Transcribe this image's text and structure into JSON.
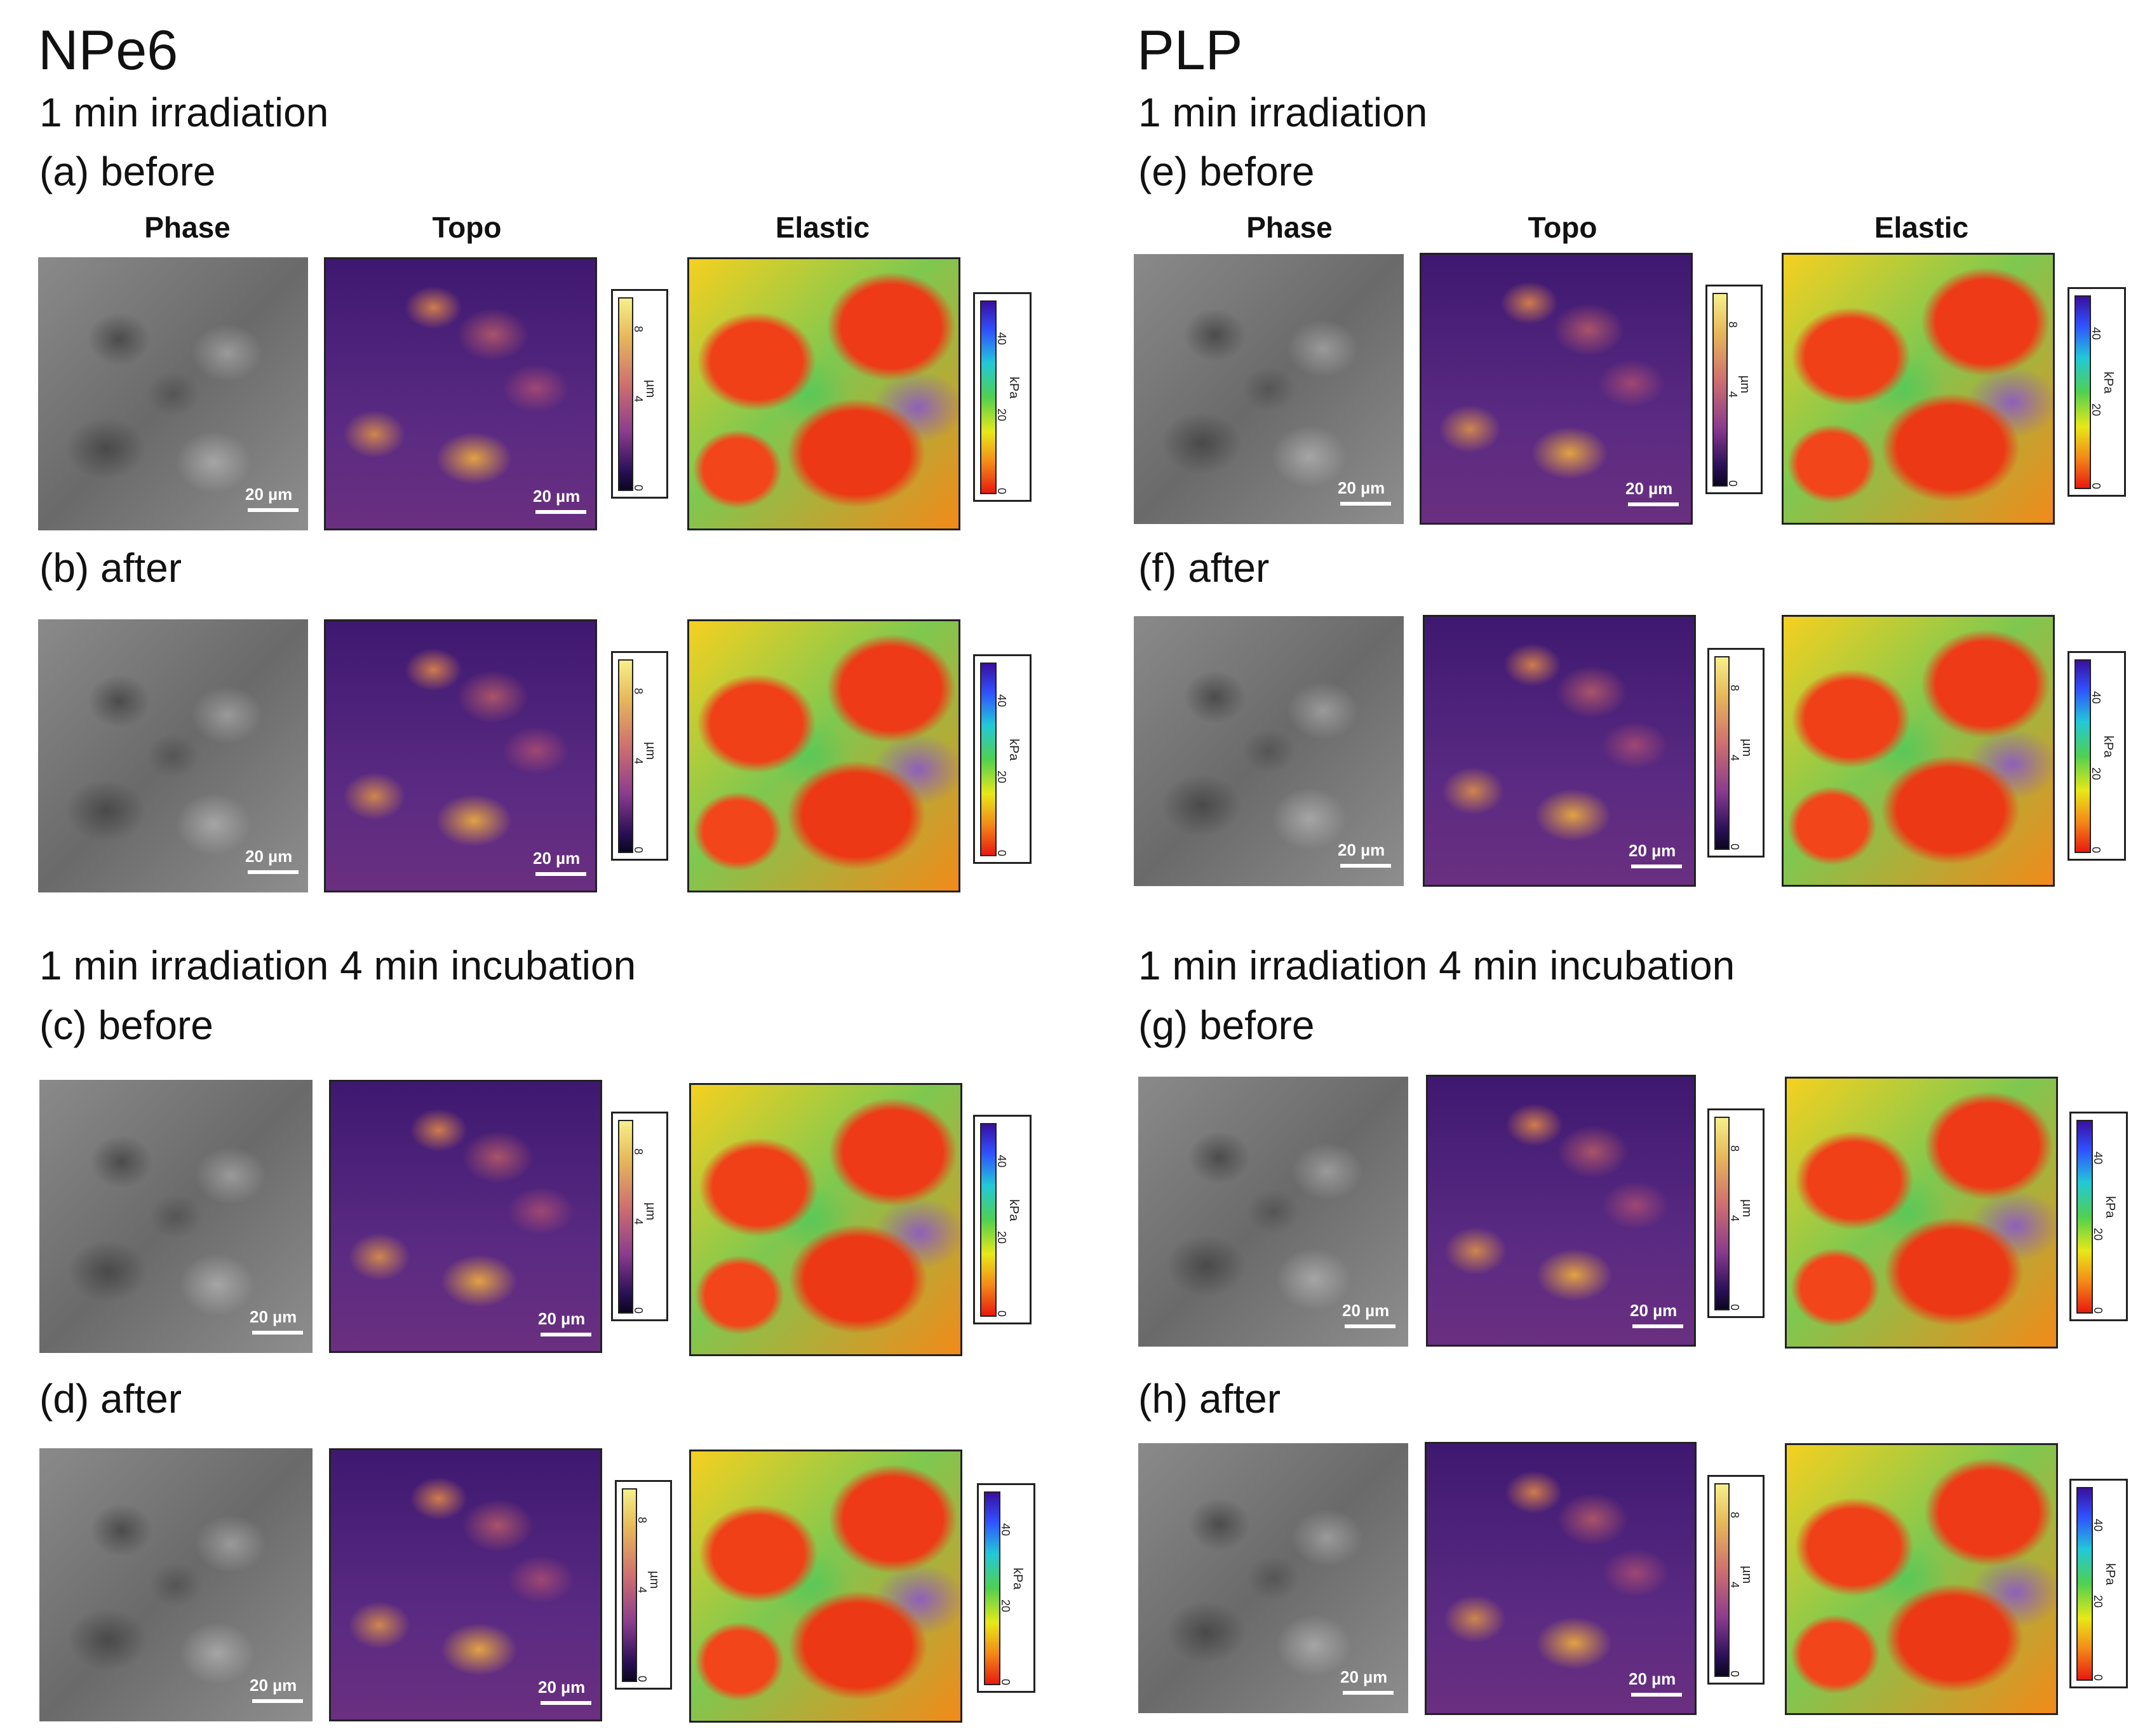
{
  "left": {
    "drug": "NPe6",
    "condition1": "1 min irradiation",
    "condition2": "1 min irradiation 4 min incubation",
    "panels": {
      "a": "(a) before",
      "b": "(b) after",
      "c": "(c) before",
      "d": "(d) after"
    }
  },
  "right": {
    "drug": "PLP",
    "condition1": "1 min irradiation",
    "condition2": "1 min irradiation 4 min incubation",
    "panels": {
      "e": "(e) before",
      "f": "(f) after",
      "g": "(g) before",
      "h": "(h) after"
    }
  },
  "columns": {
    "phase": "Phase",
    "topo": "Topo",
    "elastic": "Elastic"
  },
  "scale_label": "20 µm",
  "colorbar": {
    "topo_unit": "µm",
    "topo_ticks": [
      "0",
      "4",
      "8"
    ],
    "elastic_unit": "kPa",
    "elastic_ticks": [
      "0",
      "20",
      "40"
    ]
  }
}
